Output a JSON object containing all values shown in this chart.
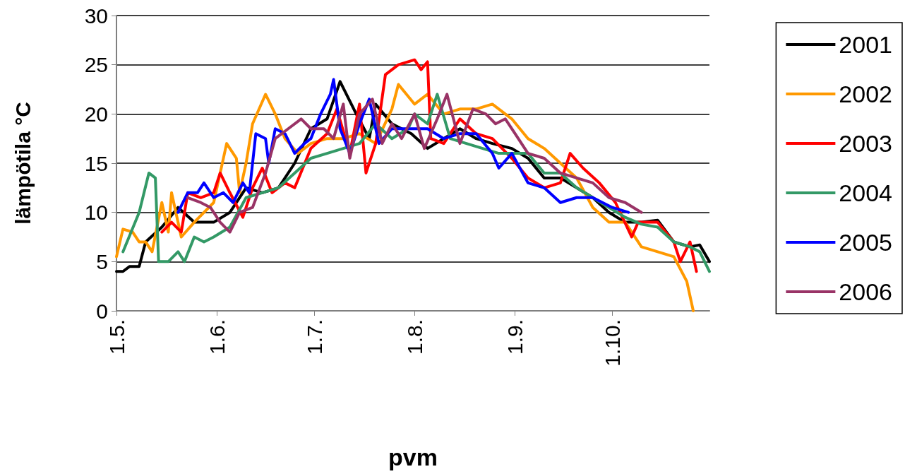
{
  "chart_data": {
    "type": "line",
    "xlabel": "pvm",
    "ylabel": "lämpötila °C",
    "ylim": [
      0,
      30
    ],
    "yticks": [
      0,
      5,
      10,
      15,
      20,
      25,
      30
    ],
    "xlim": [
      "--05-01",
      "--10-31"
    ],
    "xticks": [
      {
        "value": "--05-01",
        "label": "1.5."
      },
      {
        "value": "--06-01",
        "label": "1.6."
      },
      {
        "value": "--07-01",
        "label": "1.7."
      },
      {
        "value": "--08-01",
        "label": "1.8."
      },
      {
        "value": "--09-01",
        "label": "1.9."
      },
      {
        "value": "--10-01",
        "label": "1.10."
      }
    ],
    "grid": "y",
    "legend": "right",
    "marker": "none",
    "line_style": "solid",
    "series": [
      {
        "name": "2001",
        "color": "#000000",
        "x": [
          "--05-01",
          "--05-03",
          "--05-05",
          "--05-08",
          "--05-10",
          "--05-15",
          "--05-20",
          "--05-25",
          "--05-31",
          "--06-05",
          "--06-10",
          "--06-15",
          "--06-20",
          "--06-25",
          "--06-30",
          "--07-05",
          "--07-09",
          "--07-14",
          "--07-18",
          "--07-20",
          "--07-25",
          "--07-31",
          "--08-05",
          "--08-10",
          "--08-15",
          "--08-20",
          "--08-25",
          "--08-31",
          "--09-05",
          "--09-10",
          "--09-15",
          "--09-20",
          "--09-25",
          "--09-30",
          "--10-05",
          "--10-10",
          "--10-15",
          "--10-20",
          "--10-25",
          "--10-28",
          "--10-31"
        ],
        "values": [
          4,
          4,
          4.5,
          4.5,
          7,
          8.5,
          10.5,
          9,
          9,
          10,
          12.5,
          12,
          12.5,
          15,
          18.5,
          19.5,
          23.3,
          20,
          17.5,
          21,
          19,
          18,
          16.5,
          17.5,
          18.5,
          17.5,
          17,
          16.5,
          15.5,
          13.5,
          13.5,
          12.5,
          11.5,
          10,
          9,
          9,
          9.2,
          7,
          6.5,
          6.7,
          5
        ]
      },
      {
        "name": "2002",
        "color": "#ff9900",
        "x": [
          "--05-01",
          "--05-03",
          "--05-06",
          "--05-08",
          "--05-10",
          "--05-12",
          "--05-15",
          "--05-17",
          "--05-18",
          "--05-21",
          "--05-25",
          "--05-31",
          "--06-04",
          "--06-07",
          "--06-08",
          "--06-10",
          "--06-12",
          "--06-16",
          "--06-19",
          "--06-22",
          "--06-26",
          "--06-30",
          "--07-05",
          "--07-10",
          "--07-15",
          "--07-20",
          "--07-25",
          "--07-27",
          "--08-01",
          "--08-05",
          "--08-10",
          "--08-15",
          "--08-20",
          "--08-25",
          "--08-31",
          "--09-05",
          "--09-10",
          "--09-15",
          "--09-20",
          "--09-25",
          "--09-30",
          "--10-05",
          "--10-10",
          "--10-15",
          "--10-20",
          "--10-24",
          "--10-26"
        ],
        "values": [
          5.5,
          8.3,
          8,
          7,
          7,
          6,
          11,
          8,
          12,
          7.5,
          9,
          11,
          17,
          15.5,
          12,
          15,
          19,
          22,
          20,
          17.5,
          16,
          17,
          17.5,
          17.5,
          18,
          17,
          20.5,
          23,
          21,
          22,
          20,
          20.5,
          20.5,
          21,
          19.5,
          17.5,
          16.5,
          15,
          13.5,
          10.5,
          9,
          9,
          6.5,
          6,
          5.5,
          3,
          0
        ]
      },
      {
        "name": "2003",
        "color": "#ff0000",
        "x": [
          "--05-15",
          "--05-18",
          "--05-21",
          "--05-23",
          "--05-27",
          "--05-31",
          "--06-02",
          "--06-05",
          "--06-09",
          "--06-12",
          "--06-15",
          "--06-18",
          "--06-22",
          "--06-25",
          "--06-30",
          "--07-05",
          "--07-08",
          "--07-12",
          "--07-15",
          "--07-17",
          "--07-20",
          "--07-23",
          "--07-27",
          "--08-01",
          "--08-03",
          "--08-05",
          "--08-06",
          "--08-10",
          "--08-15",
          "--08-20",
          "--08-25",
          "--08-31",
          "--09-05",
          "--09-10",
          "--09-15",
          "--09-18",
          "--09-22",
          "--09-27",
          "--10-02",
          "--10-07",
          "--10-09",
          "--10-15",
          "--10-20",
          "--10-22",
          "--10-25",
          "--10-27"
        ],
        "values": [
          8,
          9,
          8,
          12,
          11.5,
          12,
          14,
          12,
          9.5,
          12.5,
          14.5,
          12,
          13,
          12.5,
          16.5,
          18,
          20.5,
          16,
          21,
          14,
          17,
          24,
          25,
          25.5,
          24.5,
          25.3,
          17.5,
          17,
          19.5,
          18,
          17.5,
          15.5,
          13.5,
          12.5,
          13,
          16,
          14.5,
          13,
          11,
          7.5,
          9,
          9,
          7,
          5,
          7,
          4
        ]
      },
      {
        "name": "2004",
        "color": "#339966",
        "x": [
          "--05-03",
          "--05-08",
          "--05-11",
          "--05-13",
          "--05-14",
          "--05-17",
          "--05-20",
          "--05-22",
          "--05-25",
          "--05-28",
          "--05-31",
          "--06-05",
          "--06-10",
          "--06-15",
          "--06-20",
          "--06-25",
          "--06-30",
          "--07-05",
          "--07-10",
          "--07-15",
          "--07-20",
          "--07-25",
          "--07-30",
          "--08-01",
          "--08-05",
          "--08-08",
          "--08-12",
          "--08-17",
          "--08-22",
          "--08-27",
          "--08-31",
          "--09-05",
          "--09-10",
          "--09-15",
          "--09-20",
          "--09-25",
          "--09-30",
          "--10-05",
          "--10-10",
          "--10-15",
          "--10-20",
          "--10-25",
          "--10-28",
          "--10-31"
        ],
        "values": [
          6,
          10,
          14,
          13.5,
          5,
          5,
          6,
          5,
          7.5,
          7,
          7.5,
          8.5,
          11.5,
          12,
          12.5,
          14,
          15.5,
          16,
          16.5,
          17,
          19,
          17.5,
          18.5,
          20,
          19,
          22,
          17.5,
          17,
          16.5,
          16,
          16,
          16,
          14,
          14,
          12.5,
          11.5,
          10.5,
          9.5,
          8.8,
          8.5,
          7,
          6.5,
          6,
          4
        ]
      },
      {
        "name": "2005",
        "color": "#0000ff",
        "x": [
          "--05-20",
          "--05-23",
          "--05-26",
          "--05-28",
          "--05-31",
          "--06-03",
          "--06-06",
          "--06-09",
          "--06-11",
          "--06-13",
          "--06-16",
          "--06-17",
          "--06-19",
          "--06-22",
          "--06-25",
          "--06-28",
          "--06-30",
          "--07-03",
          "--07-06",
          "--07-07",
          "--07-09",
          "--07-12",
          "--07-15",
          "--07-18",
          "--07-21",
          "--07-25",
          "--07-31",
          "--08-05",
          "--08-10",
          "--08-15",
          "--08-20",
          "--08-25",
          "--08-27",
          "--08-31",
          "--09-05",
          "--09-10",
          "--09-15",
          "--09-20",
          "--09-25",
          "--09-28",
          "--10-01",
          "--10-06"
        ],
        "values": [
          10,
          12,
          12,
          13,
          11.5,
          12,
          11,
          13,
          12,
          18,
          17.5,
          15,
          18.5,
          18,
          16,
          17,
          17.5,
          20,
          22,
          23.5,
          18.5,
          16,
          19,
          21.5,
          17,
          18.5,
          18.5,
          18.5,
          17.5,
          18,
          18,
          16,
          14.5,
          16,
          13,
          12.5,
          11,
          11.5,
          11.5,
          11,
          10.5,
          10
        ]
      },
      {
        "name": "2006",
        "color": "#993366",
        "x": [
          "--05-23",
          "--05-27",
          "--05-30",
          "--06-02",
          "--06-05",
          "--06-08",
          "--06-12",
          "--06-16",
          "--06-19",
          "--06-23",
          "--06-27",
          "--06-30",
          "--07-04",
          "--07-07",
          "--07-10",
          "--07-12",
          "--07-15",
          "--07-19",
          "--07-22",
          "--07-25",
          "--07-28",
          "--08-01",
          "--08-04",
          "--08-08",
          "--08-11",
          "--08-15",
          "--08-19",
          "--08-23",
          "--08-26",
          "--08-29",
          "--09-01",
          "--09-05",
          "--09-10",
          "--09-15",
          "--09-20",
          "--09-25",
          "--09-30",
          "--10-05",
          "--10-10"
        ],
        "values": [
          11.5,
          11,
          10.5,
          9,
          8,
          10,
          10.5,
          14,
          17.5,
          18.5,
          19.5,
          18.5,
          18.5,
          17.5,
          21,
          15.5,
          20,
          21.5,
          17,
          19,
          17.5,
          20,
          16.5,
          19.5,
          22,
          17,
          20.5,
          20,
          19,
          19.5,
          18,
          16,
          15.5,
          14,
          13.5,
          13,
          11.5,
          11,
          10
        ]
      }
    ]
  }
}
